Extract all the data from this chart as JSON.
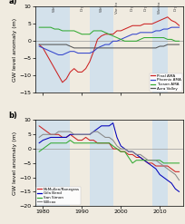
{
  "ylabel": "GW level anomaly (m)",
  "xlim": [
    1978,
    2016
  ],
  "ylim_a": [
    -15,
    10
  ],
  "ylim_b": [
    -20,
    10
  ],
  "yticks_a": [
    -15,
    -10,
    -5,
    0,
    5,
    10
  ],
  "yticks_b": [
    -20,
    -15,
    -10,
    -5,
    0,
    5,
    10
  ],
  "xticks": [
    1980,
    1990,
    2000,
    2010
  ],
  "shading": [
    {
      "xmin": 1978,
      "xmax": 1987,
      "color": "#c8ddf0",
      "alpha": 0.7
    },
    {
      "xmin": 1992,
      "xmax": 1998,
      "color": "#c8ddf0",
      "alpha": 0.7
    },
    {
      "xmin": 2008,
      "xmax": 2012,
      "color": "#c8ddf0",
      "alpha": 0.7
    }
  ],
  "wet_dry_labels": [
    {
      "text": "Wet",
      "x": 1982.5
    },
    {
      "text": "Dry",
      "x": 1989.5
    },
    {
      "text": "Wet",
      "x": 1994.5
    },
    {
      "text": "Var. to",
      "x": 1998.5
    },
    {
      "text": "Dry",
      "x": 2002.5
    },
    {
      "text": "Dry",
      "x": 2006.0
    },
    {
      "text": "Wet to",
      "x": 2009.5
    },
    {
      "text": "Dry",
      "x": 2013.5
    }
  ],
  "panel_a": {
    "Pinal AMA": {
      "color": "#cc2222",
      "x": [
        1979,
        1980,
        1981,
        1982,
        1983,
        1984,
        1985,
        1986,
        1987,
        1988,
        1989,
        1990,
        1991,
        1992,
        1993,
        1994,
        1995,
        1996,
        1997,
        1998,
        1999,
        2000,
        2001,
        2002,
        2003,
        2004,
        2005,
        2006,
        2007,
        2008,
        2009,
        2010,
        2011,
        2012,
        2013,
        2014,
        2015
      ],
      "y": [
        -1,
        -2,
        -4,
        -6,
        -8,
        -10,
        -12,
        -11,
        -9,
        -8,
        -9,
        -9,
        -8,
        -6,
        -3,
        0.5,
        1.5,
        2,
        2,
        2,
        3,
        3,
        3.5,
        4,
        4.5,
        4.5,
        4.5,
        5,
        5,
        5,
        5.5,
        6,
        6.5,
        7,
        6,
        5.5,
        4.5
      ]
    },
    "Phoenix AMA": {
      "color": "#3344cc",
      "x": [
        1979,
        1980,
        1981,
        1982,
        1983,
        1984,
        1985,
        1986,
        1987,
        1988,
        1989,
        1990,
        1991,
        1992,
        1993,
        1994,
        1995,
        1996,
        1997,
        1998,
        1999,
        2000,
        2001,
        2002,
        2003,
        2004,
        2005,
        2006,
        2007,
        2008,
        2009,
        2010,
        2011,
        2012,
        2013,
        2014,
        2015
      ],
      "y": [
        -1.5,
        -2,
        -2.5,
        -3,
        -3.5,
        -4,
        -4,
        -3.5,
        -3,
        -3,
        -3.5,
        -3.5,
        -3.5,
        -3.5,
        -3,
        -2,
        -1.5,
        -1,
        -1,
        0,
        0,
        0.5,
        1,
        1.5,
        2,
        2,
        2.5,
        2.5,
        2.5,
        2.5,
        3,
        3,
        3.5,
        3.5,
        4,
        4,
        4
      ]
    },
    "Tucson AMA": {
      "color": "#33aa33",
      "x": [
        1979,
        1980,
        1981,
        1982,
        1983,
        1984,
        1985,
        1986,
        1987,
        1988,
        1989,
        1990,
        1991,
        1992,
        1993,
        1994,
        1995,
        1996,
        1997,
        1998,
        1999,
        2000,
        2001,
        2002,
        2003,
        2004,
        2005,
        2006,
        2007,
        2008,
        2009,
        2010,
        2011,
        2012,
        2013,
        2014,
        2015
      ],
      "y": [
        4,
        4,
        4,
        4,
        3.5,
        3.5,
        3,
        3,
        3,
        3,
        2.5,
        2,
        2,
        2,
        3,
        3,
        3,
        2.5,
        2,
        1.5,
        1,
        0.5,
        0,
        0,
        0,
        0,
        0.5,
        1,
        1,
        1,
        1,
        1,
        1,
        0.5,
        0.5,
        0,
        0
      ]
    },
    "Avra Valley": {
      "color": "#555555",
      "x": [
        1979,
        1980,
        1981,
        1982,
        1983,
        1984,
        1985,
        1986,
        1987,
        1988,
        1989,
        1990,
        1991,
        1992,
        1993,
        1994,
        1995,
        1996,
        1997,
        1998,
        1999,
        2000,
        2001,
        2002,
        2003,
        2004,
        2005,
        2006,
        2007,
        2008,
        2009,
        2010,
        2011,
        2012,
        2013,
        2014,
        2015
      ],
      "y": [
        -1,
        -1,
        -1,
        -1,
        -1,
        -1,
        -1,
        -1,
        -1.5,
        -2,
        -2,
        -2,
        -2,
        -2,
        -2,
        -2,
        -2,
        -2,
        -2,
        -2,
        -2,
        -2,
        -2,
        -2,
        -2,
        -2,
        -2,
        -2,
        -2,
        -2,
        -2,
        -1.5,
        -1.5,
        -1,
        -1,
        -1,
        -1
      ]
    }
  },
  "panel_b": {
    "McMullen/Ranegras": {
      "color": "#cc2222",
      "x": [
        1979,
        1980,
        1981,
        1982,
        1983,
        1984,
        1985,
        1986,
        1987,
        1988,
        1989,
        1990,
        1991,
        1992,
        1993,
        1994,
        1995,
        1996,
        1997,
        1998,
        1999,
        2000,
        2001,
        2002,
        2003,
        2004,
        2005,
        2006,
        2007,
        2008,
        2009,
        2010,
        2011,
        2012,
        2013,
        2014,
        2015
      ],
      "y": [
        8,
        7,
        6,
        5,
        5,
        5,
        4,
        4,
        5,
        4,
        3,
        3,
        4,
        3,
        3,
        2,
        2,
        2,
        2,
        0,
        0,
        -1,
        -1,
        -2,
        -2,
        -3,
        -3,
        -4,
        -5,
        -5,
        -6,
        -6,
        -6,
        -6,
        -7,
        -8,
        -8
      ]
    },
    "Gila Bend": {
      "color": "#0000bb",
      "x": [
        1979,
        1980,
        1981,
        1982,
        1983,
        1984,
        1985,
        1986,
        1987,
        1988,
        1989,
        1990,
        1991,
        1992,
        1993,
        1994,
        1995,
        1996,
        1997,
        1998,
        1999,
        2000,
        2001,
        2002,
        2003,
        2004,
        2005,
        2006,
        2007,
        2008,
        2009,
        2010,
        2011,
        2012,
        2013,
        2014,
        2015
      ],
      "y": [
        2,
        3,
        3.5,
        4,
        4,
        4,
        4,
        4,
        5,
        5,
        5,
        5,
        5,
        5,
        6,
        7,
        8,
        8,
        8,
        9,
        4,
        1,
        0,
        -1,
        -1,
        -2,
        -3,
        -4,
        -5,
        -6,
        -7,
        -9,
        -10,
        -11,
        -12,
        -14,
        -15
      ]
    },
    "San Simon": {
      "color": "#33aa33",
      "x": [
        1979,
        1980,
        1981,
        1982,
        1983,
        1984,
        1985,
        1986,
        1987,
        1988,
        1989,
        1990,
        1991,
        1992,
        1993,
        1994,
        1995,
        1996,
        1997,
        1998,
        1999,
        2000,
        2001,
        2002,
        2003,
        2004,
        2005,
        2006,
        2007,
        2008,
        2009,
        2010,
        2011,
        2012,
        2013,
        2014,
        2015
      ],
      "y": [
        -1,
        0,
        1,
        2,
        2,
        2,
        2,
        2,
        3,
        2,
        2,
        2,
        2,
        2,
        2,
        2,
        2,
        2,
        2,
        1,
        0,
        -1,
        -1,
        -3,
        -5,
        -4,
        -4,
        -4,
        -4,
        -4,
        -4,
        -4,
        -5,
        -5,
        -5,
        -5,
        -5
      ]
    },
    "Willcox": {
      "color": "#888888",
      "x": [
        1979,
        1980,
        1981,
        1982,
        1983,
        1984,
        1985,
        1986,
        1987,
        1988,
        1989,
        1990,
        1991,
        1992,
        1993,
        1994,
        1995,
        1996,
        1997,
        1998,
        1999,
        2000,
        2001,
        2002,
        2003,
        2004,
        2005,
        2006,
        2007,
        2008,
        2009,
        2010,
        2011,
        2012,
        2013,
        2014,
        2015
      ],
      "y": [
        4,
        5,
        5,
        5,
        5,
        6,
        6,
        6,
        6,
        5,
        5,
        5,
        5,
        5,
        6,
        6,
        5,
        4,
        4,
        3,
        1,
        0,
        0,
        -1,
        -1,
        -2,
        -2,
        -3,
        -4,
        -4,
        -4,
        -5,
        -6,
        -7,
        -8,
        -9,
        -11
      ]
    }
  },
  "bg_color": "#f0ebe0",
  "wet_bg": "#c8ddf0"
}
